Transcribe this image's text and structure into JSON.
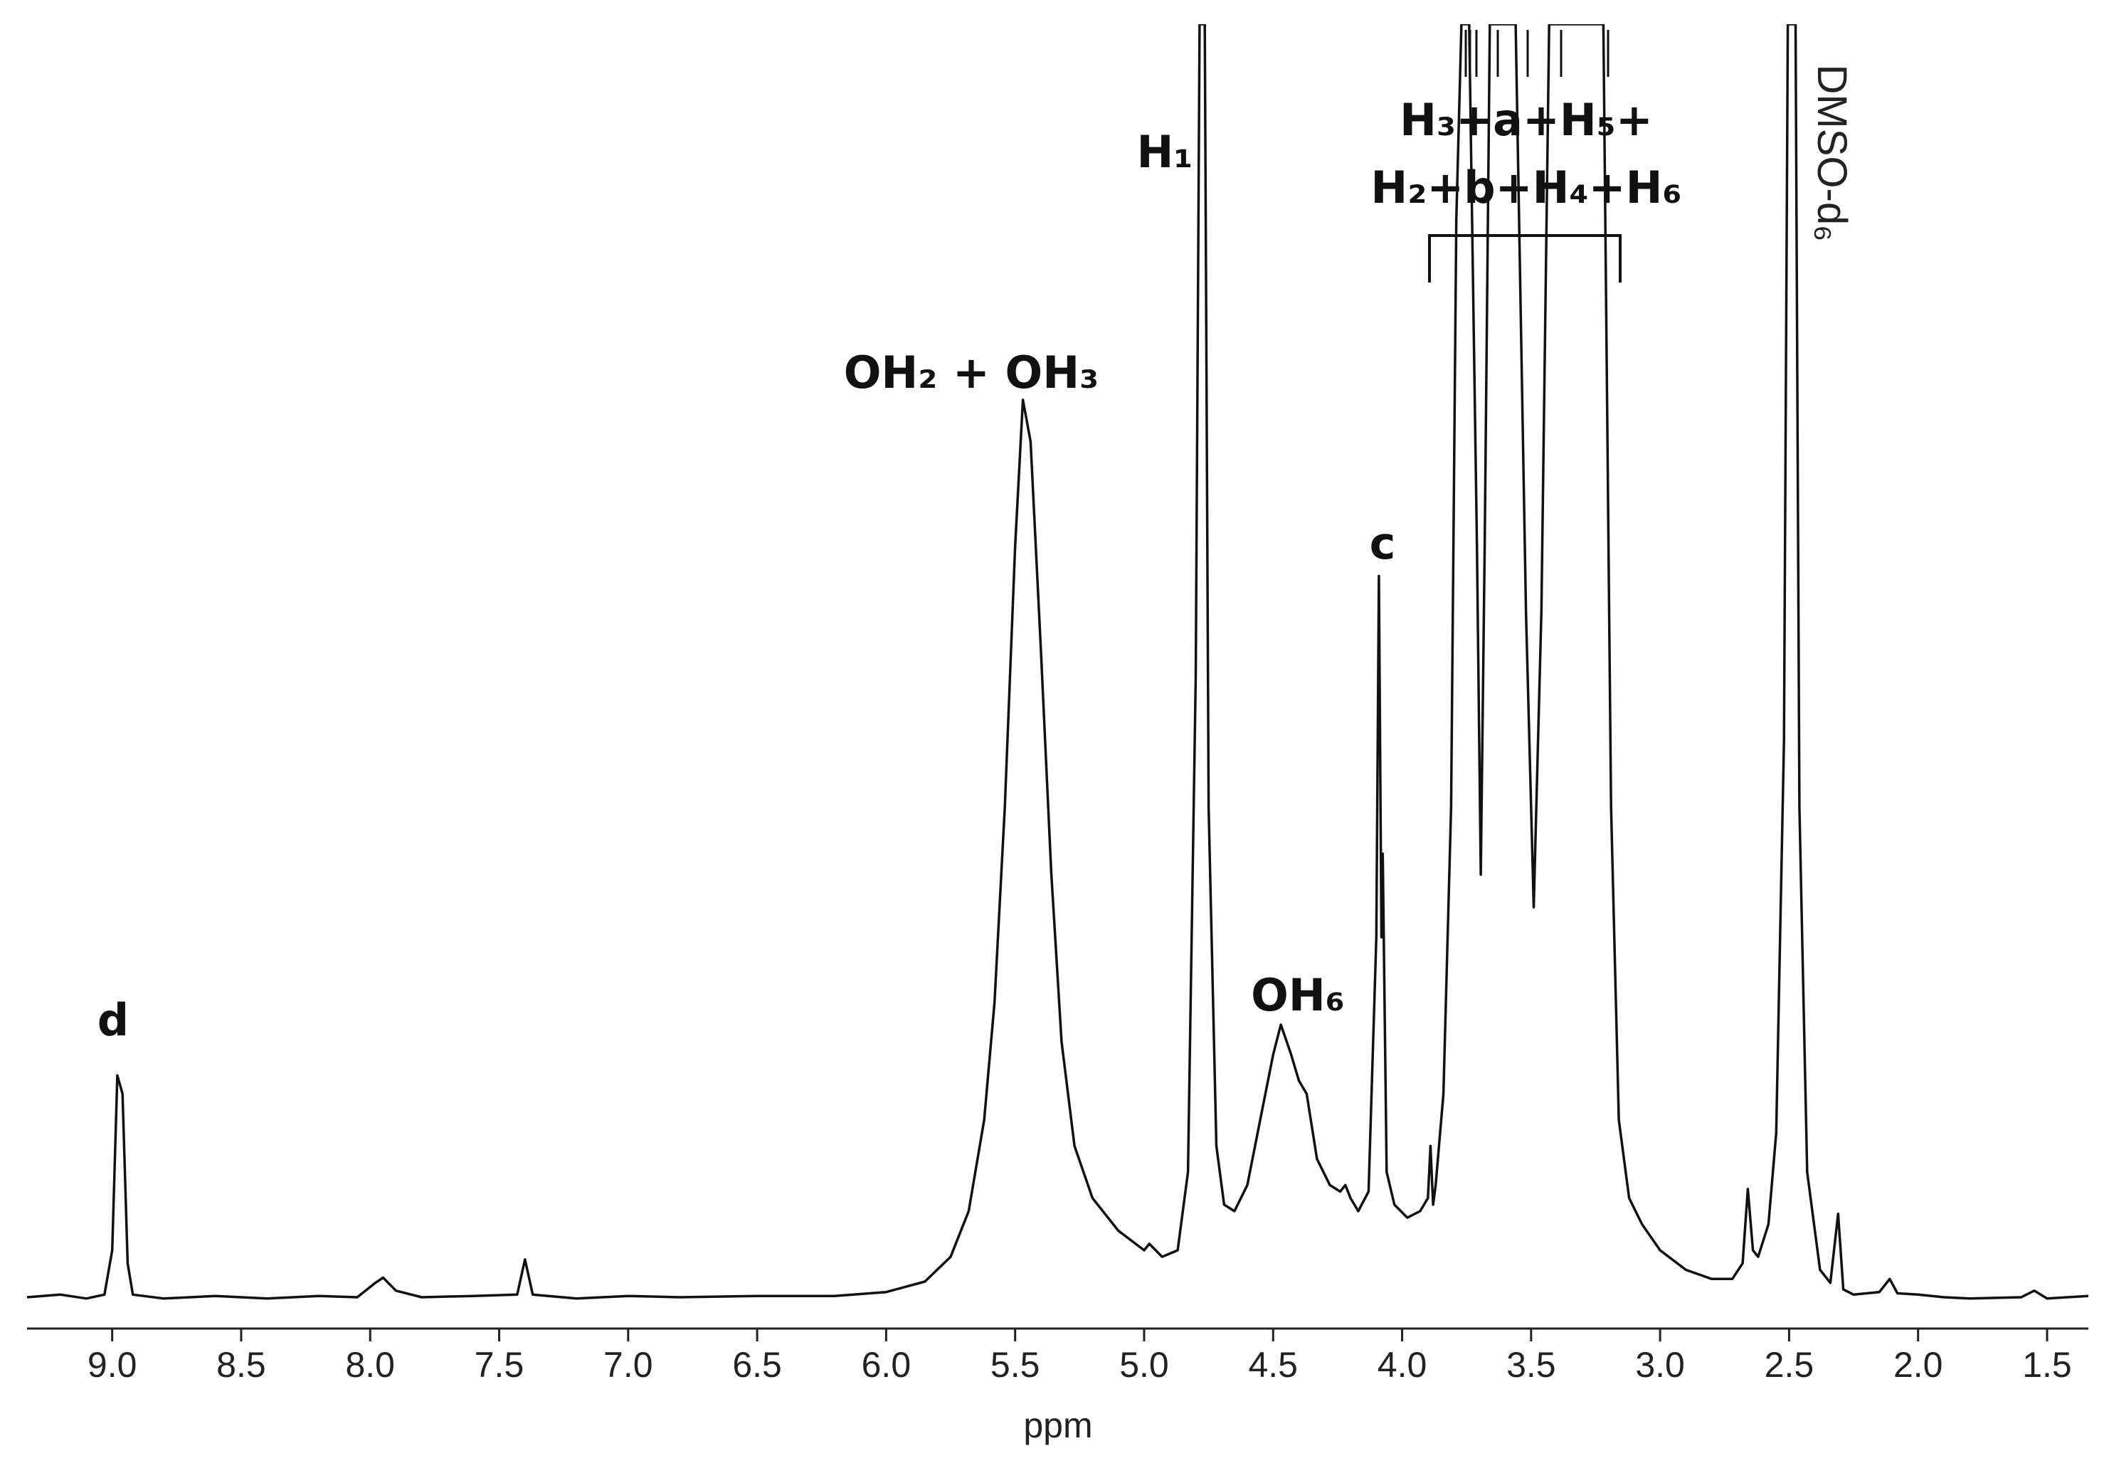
{
  "chart_data": {
    "type": "line",
    "xlabel": "ppm",
    "xlim": [
      9.33,
      1.34
    ],
    "ylim": [
      0,
      100
    ],
    "xticks": [
      {
        "value": 9,
        "label": "9.0"
      },
      8.5,
      {
        "value": 8,
        "label": "8.0"
      },
      7.5,
      {
        "value": 7,
        "label": "7.0"
      },
      6.5,
      {
        "value": 6,
        "label": "6.0"
      },
      5.5,
      {
        "value": 5,
        "label": "5.0"
      },
      4.5,
      {
        "value": 4,
        "label": "4.0"
      },
      3.5,
      {
        "value": 3,
        "label": "3.0"
      },
      2.5,
      {
        "value": 2,
        "label": "2.0"
      },
      1.5
    ],
    "color": "#111111",
    "annotations": [
      "d",
      "OH₂ + OH₃",
      "H₁",
      "OH₆",
      "c",
      "H₃+a+H₅+",
      "H₂+b+H₄+H₆",
      "DMSO-d₆"
    ],
    "x": [
      9.33,
      9.2,
      9.1,
      9.03,
      9.0,
      8.98,
      8.96,
      8.94,
      8.92,
      8.8,
      8.6,
      8.4,
      8.2,
      8.05,
      7.98,
      7.95,
      7.9,
      7.8,
      7.6,
      7.43,
      7.4,
      7.37,
      7.2,
      7.0,
      6.8,
      6.5,
      6.2,
      6.0,
      5.85,
      5.75,
      5.68,
      5.62,
      5.58,
      5.54,
      5.5,
      5.47,
      5.44,
      5.4,
      5.36,
      5.32,
      5.27,
      5.2,
      5.1,
      5.0,
      4.98,
      4.93,
      4.87,
      4.83,
      4.8,
      4.785,
      4.765,
      4.75,
      4.72,
      4.69,
      4.65,
      4.6,
      4.55,
      4.5,
      4.47,
      4.43,
      4.4,
      4.37,
      4.33,
      4.28,
      4.24,
      4.22,
      4.2,
      4.17,
      4.13,
      4.1,
      4.09,
      4.08,
      4.075,
      4.06,
      4.03,
      3.98,
      3.93,
      3.9,
      3.89,
      3.88,
      3.87,
      3.84,
      3.81,
      3.79,
      3.77,
      3.74,
      3.71,
      3.695,
      3.68,
      3.66,
      3.56,
      3.52,
      3.49,
      3.46,
      3.43,
      3.22,
      3.19,
      3.16,
      3.12,
      3.07,
      3.0,
      2.9,
      2.8,
      2.72,
      2.68,
      2.66,
      2.64,
      2.62,
      2.58,
      2.55,
      2.52,
      2.505,
      2.475,
      2.46,
      2.43,
      2.38,
      2.34,
      2.31,
      2.29,
      2.25,
      2.15,
      2.11,
      2.08,
      2.0,
      1.9,
      1.8,
      1.6,
      1.55,
      1.5,
      1.34
    ],
    "values": [
      2.4,
      2.6,
      2.3,
      2.6,
      6,
      19.4,
      18,
      5,
      2.6,
      2.3,
      2.5,
      2.3,
      2.5,
      2.4,
      3.5,
      3.9,
      2.9,
      2.4,
      2.5,
      2.6,
      5.3,
      2.6,
      2.3,
      2.5,
      2.4,
      2.5,
      2.5,
      2.8,
      3.6,
      5.5,
      9,
      16,
      25,
      40,
      60,
      71.2,
      68,
      52,
      35,
      22,
      14,
      10,
      7.5,
      6,
      6.5,
      5.5,
      6,
      12,
      50,
      100,
      100,
      40,
      14,
      9.5,
      9,
      11,
      16,
      21,
      23.3,
      21,
      19,
      18,
      13,
      11,
      10.5,
      11,
      10,
      9,
      10.5,
      30,
      57.7,
      30,
      36.4,
      12,
      9.5,
      8.5,
      9,
      10,
      14,
      9.5,
      11,
      18,
      40,
      85,
      100,
      100,
      60,
      34.8,
      60,
      100,
      100,
      55,
      32.3,
      55,
      100,
      100,
      40,
      16,
      10,
      8,
      6,
      4.5,
      3.8,
      3.8,
      5,
      10.7,
      6,
      5.5,
      8,
      15,
      45,
      100,
      100,
      40,
      12,
      4.5,
      3.5,
      8.8,
      3,
      2.6,
      2.8,
      3.8,
      2.7,
      2.6,
      2.4,
      2.3,
      2.4,
      2.9,
      2.3,
      2.5
    ]
  }
}
